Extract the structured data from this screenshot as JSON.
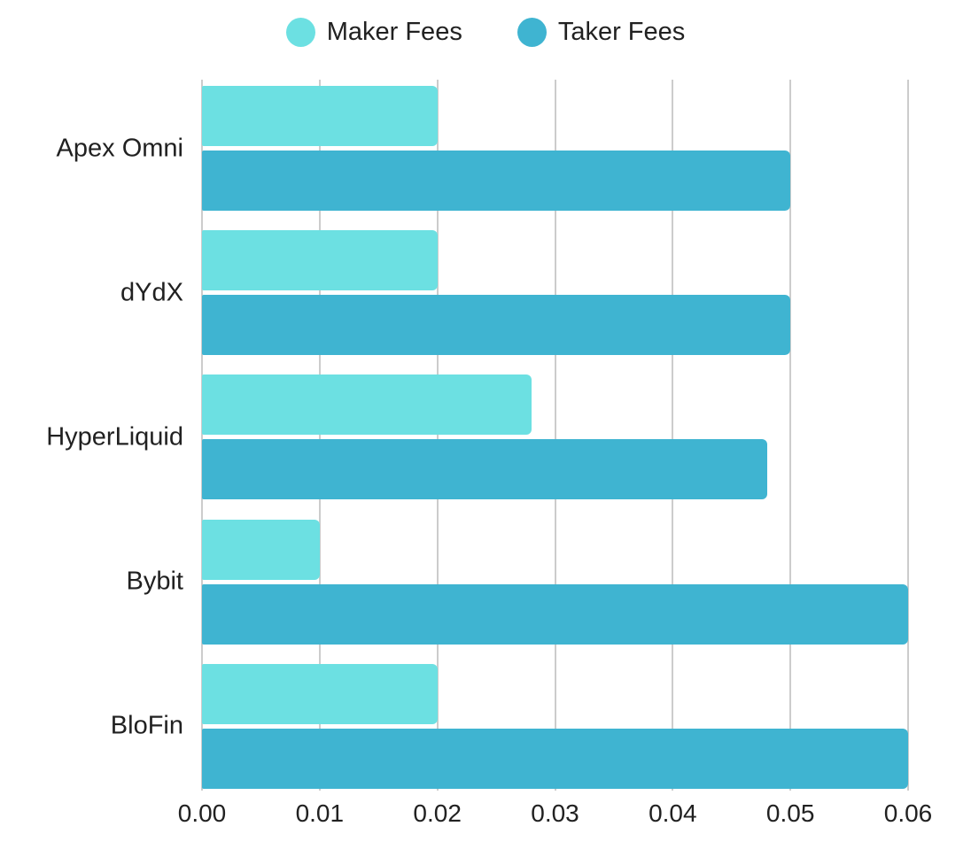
{
  "page": {
    "background_color": "#ffffff",
    "text_color": "#212121",
    "gridline_color": "#cccccc"
  },
  "legend": {
    "items": [
      {
        "label": "Maker Fees",
        "color": "#6ce0e2"
      },
      {
        "label": "Taker Fees",
        "color": "#3fb4d1"
      }
    ]
  },
  "chart_data": {
    "type": "bar",
    "orientation": "horizontal",
    "title": "",
    "xlabel": "",
    "ylabel": "",
    "categories": [
      "Apex Omni",
      "dYdX",
      "HyperLiquid",
      "Bybit",
      "BloFin"
    ],
    "series": [
      {
        "name": "Maker Fees",
        "color": "#6ce0e2",
        "values": [
          0.02,
          0.02,
          0.028,
          0.01,
          0.02
        ]
      },
      {
        "name": "Taker Fees",
        "color": "#3fb4d1",
        "values": [
          0.05,
          0.05,
          0.048,
          0.06,
          0.06
        ]
      }
    ],
    "xlim": [
      0,
      0.06
    ],
    "x_ticks": [
      "0.00",
      "0.01",
      "0.02",
      "0.03",
      "0.04",
      "0.05",
      "0.06"
    ],
    "grid": true,
    "legend_position": "top"
  }
}
